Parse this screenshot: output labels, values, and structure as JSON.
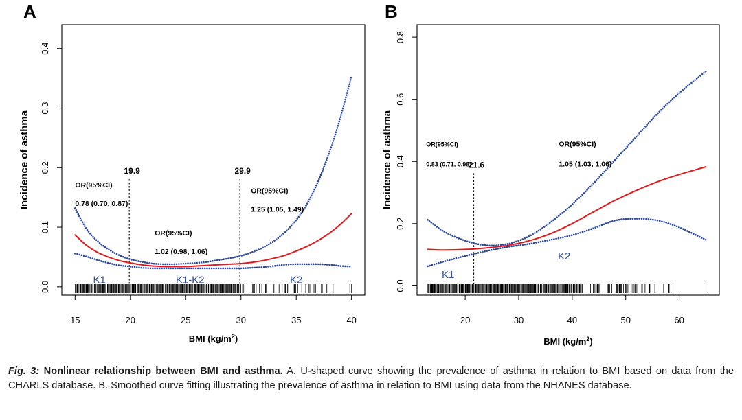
{
  "colors": {
    "curve": "#e31a1c",
    "ci": "#2a4aa3",
    "axis": "#000000",
    "text": "#000000",
    "segment": "#2f4fa8"
  },
  "chart_data": [
    {
      "type": "line",
      "panel_label": "A",
      "xlabel": "BMI (kg/m",
      "xlabel_sup": "2",
      "xlabel_close": ")",
      "ylabel": "Incidence of asthma",
      "xlim": [
        13.8,
        41.2
      ],
      "ylim": [
        -0.014,
        0.44
      ],
      "xticks": [
        15,
        20,
        25,
        30,
        35,
        40
      ],
      "yticks": [
        0.0,
        0.1,
        0.2,
        0.3,
        0.4
      ],
      "ytick_labels": [
        "0.0",
        "0.1",
        "0.2",
        "0.3",
        "0.4"
      ],
      "series": [
        {
          "name": "Estimate",
          "style": "solid-red",
          "x": [
            15,
            16,
            17,
            18,
            19,
            20,
            21,
            22,
            23,
            24,
            25,
            26,
            27,
            28,
            29,
            30,
            31,
            32,
            33,
            34,
            35,
            36,
            37,
            38,
            39,
            40
          ],
          "y": [
            0.087,
            0.07,
            0.058,
            0.05,
            0.044,
            0.04,
            0.037,
            0.035,
            0.034,
            0.034,
            0.034,
            0.035,
            0.036,
            0.037,
            0.038,
            0.039,
            0.041,
            0.044,
            0.048,
            0.053,
            0.06,
            0.068,
            0.078,
            0.09,
            0.105,
            0.123
          ]
        },
        {
          "name": "Upper 95% CI",
          "style": "dotted-blue",
          "x": [
            15,
            16,
            17,
            18,
            19,
            20,
            21,
            22,
            23,
            24,
            25,
            26,
            27,
            28,
            29,
            30,
            31,
            32,
            33,
            34,
            35,
            36,
            37,
            38,
            39,
            40
          ],
          "y": [
            0.132,
            0.098,
            0.077,
            0.063,
            0.053,
            0.046,
            0.042,
            0.039,
            0.038,
            0.038,
            0.039,
            0.04,
            0.042,
            0.045,
            0.048,
            0.052,
            0.058,
            0.066,
            0.077,
            0.092,
            0.112,
            0.14,
            0.178,
            0.226,
            0.285,
            0.354
          ]
        },
        {
          "name": "Lower 95% CI",
          "style": "dotted-blue",
          "x": [
            15,
            16,
            17,
            18,
            19,
            20,
            21,
            22,
            23,
            24,
            25,
            26,
            27,
            28,
            29,
            30,
            31,
            32,
            33,
            34,
            35,
            36,
            37,
            38,
            39,
            40
          ],
          "y": [
            0.056,
            0.051,
            0.045,
            0.04,
            0.036,
            0.034,
            0.032,
            0.031,
            0.031,
            0.031,
            0.031,
            0.031,
            0.031,
            0.031,
            0.031,
            0.031,
            0.032,
            0.033,
            0.035,
            0.037,
            0.038,
            0.038,
            0.038,
            0.037,
            0.035,
            0.034
          ]
        }
      ],
      "rug": {
        "xmin": 15,
        "xmax": 40,
        "dense_until": 30,
        "sparse_until": 36
      },
      "cutpoints": [
        {
          "x": 19.9,
          "label": "19.9",
          "label_y": 0.19
        },
        {
          "x": 29.9,
          "label": "29.9",
          "label_y": 0.19
        }
      ],
      "segments": [
        {
          "label": "K1",
          "x": 17.2,
          "y": 0.006
        },
        {
          "label": "K1-K2",
          "x": 25.4,
          "y": 0.006
        },
        {
          "label": "K2",
          "x": 35.0,
          "y": 0.006
        }
      ],
      "annotations": [
        {
          "text": "OR(95%CI)",
          "x": 15.0,
          "y": 0.167
        },
        {
          "text": "0.78 (0.70, 0.87)",
          "x": 15.0,
          "y": 0.136
        },
        {
          "text": "OR(95%CI)",
          "x": 30.9,
          "y": 0.157
        },
        {
          "text": "1.25 (1.05, 1.49)",
          "x": 30.9,
          "y": 0.126
        },
        {
          "text": "OR(95%CI)",
          "x": 22.2,
          "y": 0.086
        },
        {
          "text": "1.02 (0.98, 1.06)",
          "x": 22.2,
          "y": 0.055
        }
      ]
    },
    {
      "type": "line",
      "panel_label": "B",
      "xlabel": "BMI (kg/m",
      "xlabel_sup": "2",
      "xlabel_close": ")",
      "ylabel": "Incidence of asthma",
      "xlim": [
        11.0,
        67.5
      ],
      "ylim": [
        -0.03,
        0.84
      ],
      "xticks": [
        20,
        30,
        40,
        50,
        60
      ],
      "yticks": [
        0.0,
        0.2,
        0.4,
        0.6,
        0.8
      ],
      "ytick_labels": [
        "0.0",
        "0.2",
        "0.4",
        "0.6",
        "0.8"
      ],
      "series": [
        {
          "name": "Estimate",
          "style": "solid-red",
          "x": [
            13,
            16,
            20,
            24,
            28,
            32,
            36,
            40,
            44,
            48,
            52,
            56,
            60,
            65
          ],
          "y": [
            0.117,
            0.115,
            0.117,
            0.122,
            0.13,
            0.145,
            0.168,
            0.2,
            0.238,
            0.275,
            0.307,
            0.335,
            0.358,
            0.383
          ]
        },
        {
          "name": "Upper 95% CI",
          "style": "dotted-blue",
          "x": [
            13,
            16,
            20,
            24,
            28,
            32,
            36,
            40,
            44,
            48,
            52,
            56,
            60,
            65
          ],
          "y": [
            0.212,
            0.175,
            0.145,
            0.13,
            0.135,
            0.16,
            0.205,
            0.262,
            0.33,
            0.405,
            0.48,
            0.555,
            0.62,
            0.69
          ]
        },
        {
          "name": "Lower 95% CI",
          "style": "dotted-blue",
          "x": [
            13,
            16,
            20,
            24,
            28,
            32,
            36,
            40,
            44,
            48,
            52,
            56,
            60,
            65
          ],
          "y": [
            0.063,
            0.078,
            0.096,
            0.112,
            0.125,
            0.135,
            0.148,
            0.163,
            0.185,
            0.21,
            0.216,
            0.21,
            0.188,
            0.148
          ]
        }
      ],
      "rug": {
        "xmin": 13,
        "xmax": 65,
        "dense_until": 42,
        "sparse_until": 52
      },
      "cutpoints": [
        {
          "x": 21.6,
          "label": "21.6",
          "label_y": 0.38
        }
      ],
      "segments": [
        {
          "label": "K1",
          "x": 16.8,
          "y": 0.025
        },
        {
          "label": "K2",
          "x": 38.5,
          "y": 0.085
        }
      ],
      "annotations": [
        {
          "text": "OR(95%CI)",
          "x": 12.7,
          "y": 0.448
        },
        {
          "text": "0.83 (0.71, 0.98)",
          "x": 12.7,
          "y": 0.384
        },
        {
          "text": "OR(95%CI)",
          "x": 37.5,
          "y": 0.448
        },
        {
          "text": "1.05 (1.03, 1.06)",
          "x": 37.5,
          "y": 0.384
        }
      ]
    }
  ],
  "caption": {
    "lead": "Fig. 3:",
    "title": "Nonlinear relationship between BMI and asthma.",
    "body": " A. U-shaped curve showing the prevalence of asthma in relation to BMI based on data from the CHARLS database. B. Smoothed curve fitting illustrating the prevalence of asthma in relation to BMI using data from the NHANES database."
  }
}
